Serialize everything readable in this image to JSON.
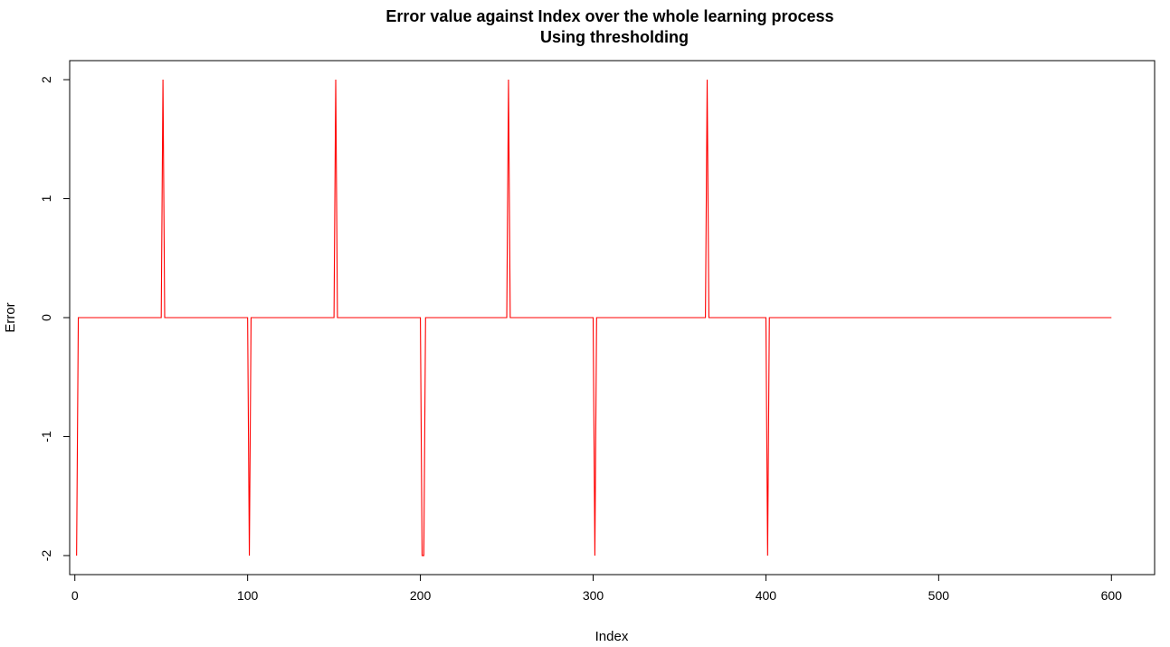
{
  "chart_data": {
    "type": "line",
    "title": "Error value against Index over the whole learning process",
    "subtitle": "Using thresholding",
    "xlabel": "Index",
    "ylabel": "Error",
    "xlim": [
      -3,
      625
    ],
    "ylim": [
      -2.16,
      2.16
    ],
    "x_ticks": [
      0,
      100,
      200,
      300,
      400,
      500,
      600
    ],
    "x_tick_labels": [
      "0",
      "100",
      "200",
      "300",
      "400",
      "500",
      "600"
    ],
    "y_ticks": [
      -2,
      -1,
      0,
      1,
      2
    ],
    "y_tick_labels": [
      "-2",
      "-1",
      "0",
      "1",
      "2"
    ],
    "grid": false,
    "legend": "none",
    "series": [
      {
        "color": "#ff0000",
        "x": [
          1,
          2,
          50,
          51,
          52,
          100,
          101,
          102,
          150,
          151,
          152,
          200,
          201,
          202,
          203,
          250,
          251,
          252,
          300,
          301,
          302,
          365,
          366,
          367,
          400,
          401,
          402,
          600
        ],
        "y": [
          -2,
          0,
          0,
          2,
          0,
          0,
          -2,
          0,
          0,
          2,
          0,
          0,
          -2,
          -2,
          0,
          0,
          2,
          0,
          0,
          -2,
          0,
          0,
          2,
          0,
          0,
          -2,
          0,
          0
        ]
      }
    ]
  }
}
